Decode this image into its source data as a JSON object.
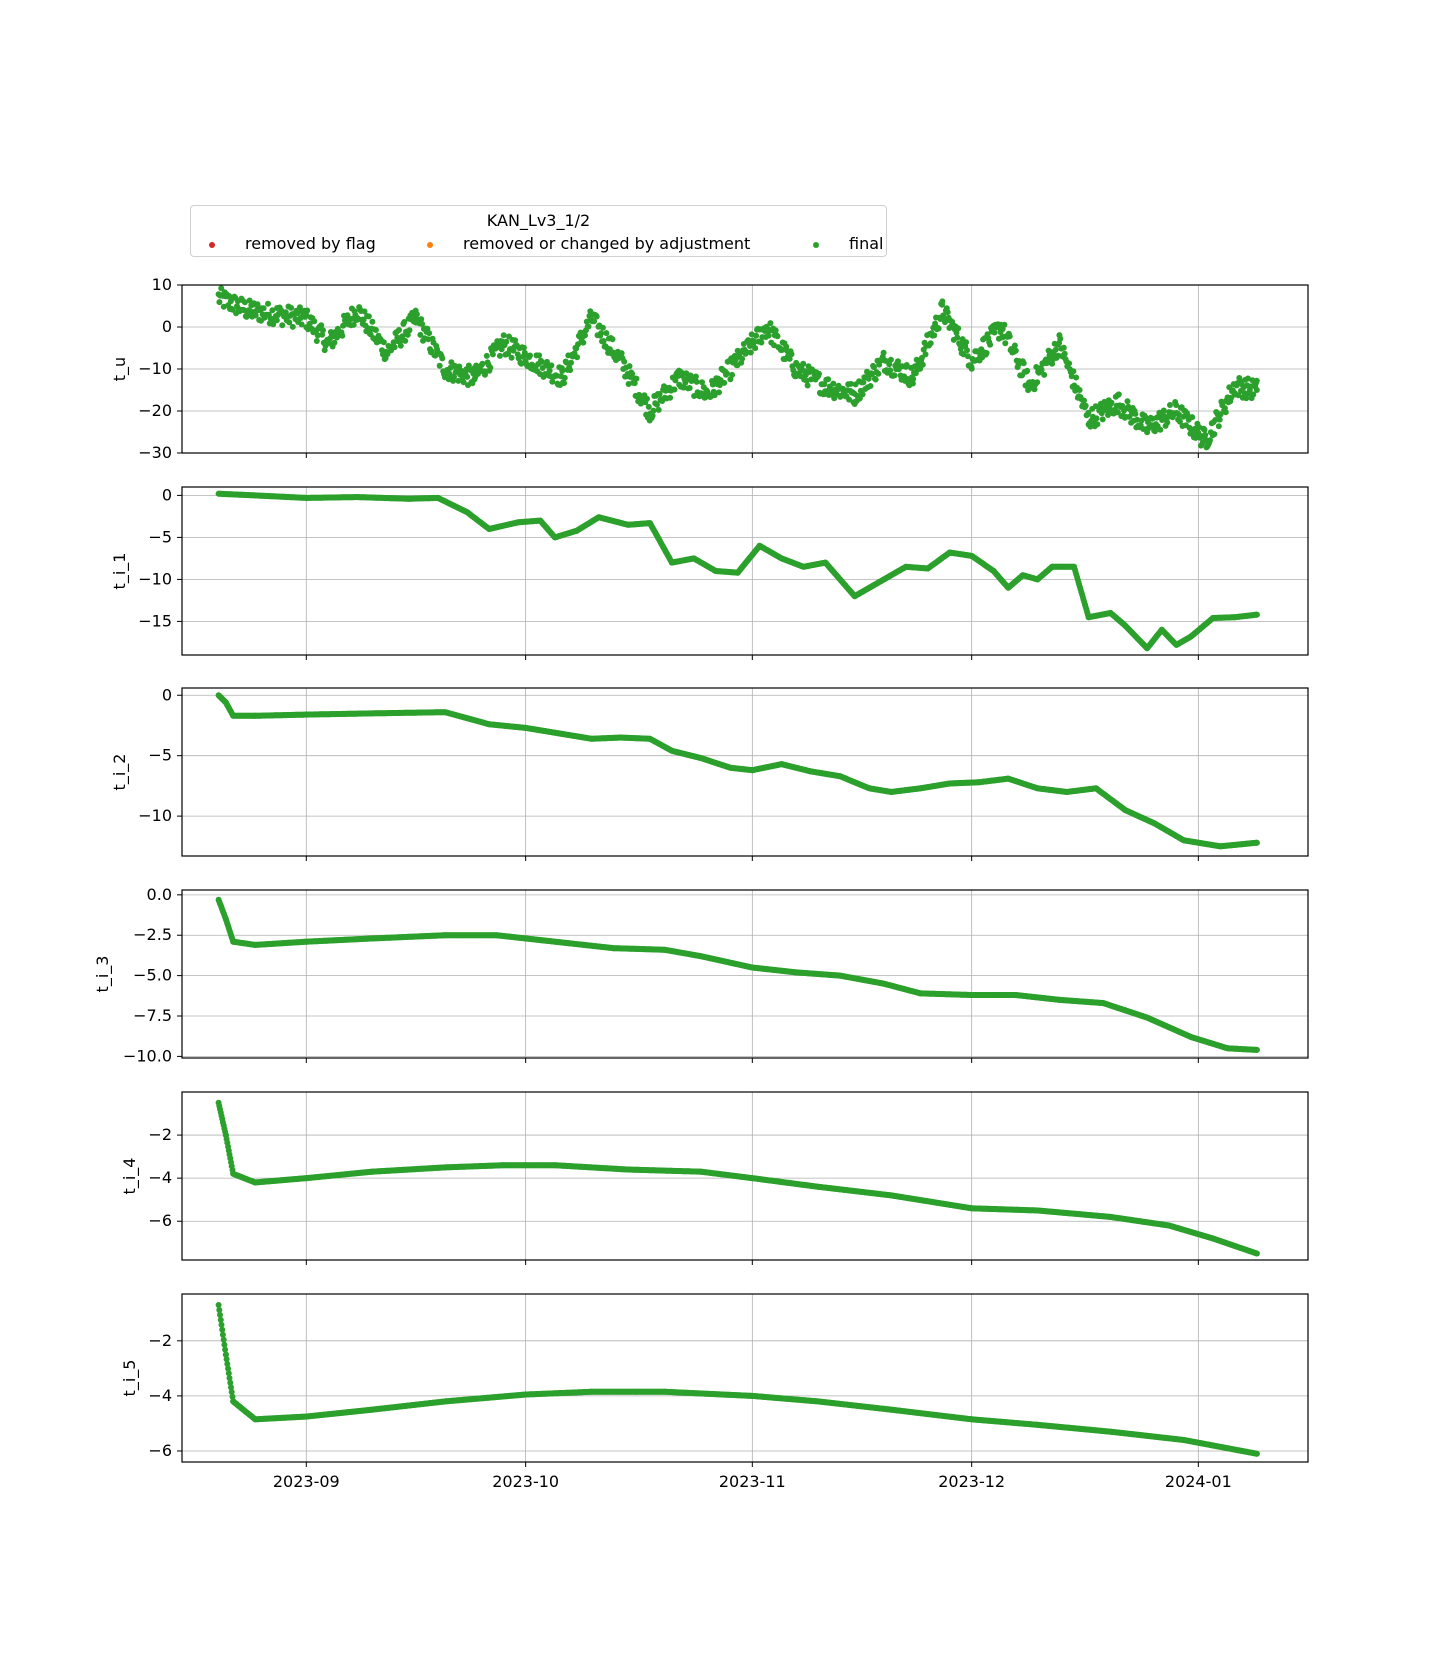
{
  "legend": {
    "title": "KAN_Lv3_1/2",
    "entries": [
      {
        "label": "removed by flag",
        "color": "#d62728"
      },
      {
        "label": "removed or changed by adjustment",
        "color": "#ff7f0e"
      },
      {
        "label": "final",
        "color": "#2ca02c"
      }
    ]
  },
  "chart_data": {
    "type": "scatter",
    "x_axis": {
      "type": "date",
      "range": [
        "2023-08-15",
        "2024-01-16"
      ],
      "ticks": [
        "2023-09-01",
        "2023-10-01",
        "2023-11-01",
        "2023-12-01",
        "2024-01-01"
      ],
      "tick_labels": [
        "2023-09",
        "2023-10",
        "2023-11",
        "2023-12",
        "2024-01"
      ]
    },
    "grid": true,
    "legend_position": "top-left, above plots",
    "series_color": "#2ca02c",
    "panels": [
      {
        "ylabel": "t_u",
        "ylim": [
          -30,
          10
        ],
        "yticks": [
          10,
          0,
          -10,
          -20,
          -30
        ],
        "ytick_labels": [
          "10",
          "0",
          "−10",
          "−20",
          "−30"
        ],
        "dates": [
          "2023-08-20",
          "2023-08-24",
          "2023-08-28",
          "2023-09-01",
          "2023-09-04",
          "2023-09-08",
          "2023-09-12",
          "2023-09-16",
          "2023-09-20",
          "2023-09-24",
          "2023-09-28",
          "2023-10-02",
          "2023-10-06",
          "2023-10-10",
          "2023-10-14",
          "2023-10-18",
          "2023-10-22",
          "2023-10-26",
          "2023-10-30",
          "2023-11-03",
          "2023-11-07",
          "2023-11-11",
          "2023-11-15",
          "2023-11-19",
          "2023-11-23",
          "2023-11-27",
          "2023-12-01",
          "2023-12-05",
          "2023-12-09",
          "2023-12-13",
          "2023-12-17",
          "2023-12-21",
          "2023-12-25",
          "2023-12-29",
          "2024-01-02",
          "2024-01-06",
          "2024-01-09"
        ],
        "values": [
          7,
          4,
          3,
          2,
          -4,
          4,
          -6,
          2,
          -10,
          -12,
          -4,
          -8,
          -12,
          2,
          -8,
          -20,
          -12,
          -16,
          -8,
          0,
          -10,
          -14,
          -16,
          -8,
          -12,
          4,
          -8,
          0,
          -14,
          -4,
          -22,
          -18,
          -24,
          -20,
          -27,
          -14,
          -15
        ]
      },
      {
        "ylabel": "t_i_1",
        "ylim": [
          -19,
          1
        ],
        "yticks": [
          0,
          -5,
          -10,
          -15
        ],
        "ytick_labels": [
          "0",
          "−5",
          "−10",
          "−15"
        ],
        "dates": [
          "2023-08-20",
          "2023-08-25",
          "2023-09-01",
          "2023-09-08",
          "2023-09-15",
          "2023-09-19",
          "2023-09-23",
          "2023-09-26",
          "2023-09-30",
          "2023-10-03",
          "2023-10-05",
          "2023-10-08",
          "2023-10-11",
          "2023-10-15",
          "2023-10-18",
          "2023-10-21",
          "2023-10-24",
          "2023-10-27",
          "2023-10-30",
          "2023-11-02",
          "2023-11-05",
          "2023-11-08",
          "2023-11-11",
          "2023-11-15",
          "2023-11-19",
          "2023-11-22",
          "2023-11-25",
          "2023-11-28",
          "2023-12-01",
          "2023-12-04",
          "2023-12-06",
          "2023-12-08",
          "2023-12-10",
          "2023-12-12",
          "2023-12-15",
          "2023-12-17",
          "2023-12-20",
          "2023-12-22",
          "2023-12-25",
          "2023-12-27",
          "2023-12-29",
          "2023-12-31",
          "2024-01-03",
          "2024-01-06",
          "2024-01-09"
        ],
        "values": [
          0.2,
          0,
          -0.3,
          -0.2,
          -0.4,
          -0.3,
          -2,
          -4,
          -3.2,
          -3,
          -5,
          -4.2,
          -2.6,
          -3.5,
          -3.3,
          -8,
          -7.5,
          -9,
          -9.2,
          -6,
          -7.5,
          -8.5,
          -8,
          -12,
          -10,
          -8.5,
          -8.7,
          -6.8,
          -7.2,
          -9,
          -11,
          -9.5,
          -10,
          -8.5,
          -8.5,
          -14.5,
          -14,
          -15.5,
          -18.2,
          -16,
          -17.8,
          -16.8,
          -14.6,
          -14.5,
          -14.2
        ]
      },
      {
        "ylabel": "t_i_2",
        "ylim": [
          -13.3,
          0.6
        ],
        "yticks": [
          0,
          -5,
          -10
        ],
        "ytick_labels": [
          "0",
          "−5",
          "−10"
        ],
        "dates": [
          "2023-08-20",
          "2023-08-21",
          "2023-08-22",
          "2023-08-25",
          "2023-09-01",
          "2023-09-10",
          "2023-09-20",
          "2023-09-26",
          "2023-10-01",
          "2023-10-06",
          "2023-10-10",
          "2023-10-14",
          "2023-10-18",
          "2023-10-21",
          "2023-10-25",
          "2023-10-29",
          "2023-11-01",
          "2023-11-05",
          "2023-11-09",
          "2023-11-13",
          "2023-11-17",
          "2023-11-20",
          "2023-11-24",
          "2023-11-28",
          "2023-12-02",
          "2023-12-06",
          "2023-12-10",
          "2023-12-14",
          "2023-12-18",
          "2023-12-22",
          "2023-12-26",
          "2023-12-30",
          "2024-01-04",
          "2024-01-09"
        ],
        "values": [
          0,
          -0.6,
          -1.7,
          -1.7,
          -1.6,
          -1.5,
          -1.4,
          -2.4,
          -2.7,
          -3.2,
          -3.6,
          -3.5,
          -3.6,
          -4.6,
          -5.2,
          -6,
          -6.2,
          -5.7,
          -6.3,
          -6.7,
          -7.7,
          -8,
          -7.7,
          -7.3,
          -7.2,
          -6.9,
          -7.7,
          -8,
          -7.7,
          -9.5,
          -10.6,
          -12,
          -12.5,
          -12.2
        ]
      },
      {
        "ylabel": "t_i_3",
        "ylim": [
          -10.1,
          0.3
        ],
        "yticks": [
          0,
          -2.5,
          -5,
          -7.5,
          -10
        ],
        "ytick_labels": [
          "0.0",
          "−2.5",
          "−5.0",
          "−7.5",
          "−10.0"
        ],
        "dates": [
          "2023-08-20",
          "2023-08-21",
          "2023-08-22",
          "2023-08-25",
          "2023-09-01",
          "2023-09-10",
          "2023-09-20",
          "2023-09-27",
          "2023-10-01",
          "2023-10-07",
          "2023-10-13",
          "2023-10-20",
          "2023-10-25",
          "2023-11-01",
          "2023-11-07",
          "2023-11-13",
          "2023-11-19",
          "2023-11-24",
          "2023-12-01",
          "2023-12-07",
          "2023-12-13",
          "2023-12-19",
          "2023-12-25",
          "2023-12-31",
          "2024-01-05",
          "2024-01-09"
        ],
        "values": [
          -0.3,
          -1.5,
          -2.9,
          -3.1,
          -2.9,
          -2.7,
          -2.5,
          -2.5,
          -2.7,
          -3,
          -3.3,
          -3.4,
          -3.8,
          -4.5,
          -4.8,
          -5,
          -5.5,
          -6.1,
          -6.2,
          -6.2,
          -6.5,
          -6.7,
          -7.6,
          -8.8,
          -9.5,
          -9.6
        ]
      },
      {
        "ylabel": "t_i_4",
        "ylim": [
          -7.8,
          0
        ],
        "yticks": [
          -2,
          -4,
          -6
        ],
        "ytick_labels": [
          "−2",
          "−4",
          "−6"
        ],
        "dates": [
          "2023-08-20",
          "2023-08-21",
          "2023-08-22",
          "2023-08-25",
          "2023-09-01",
          "2023-09-10",
          "2023-09-20",
          "2023-09-28",
          "2023-10-05",
          "2023-10-15",
          "2023-10-25",
          "2023-11-01",
          "2023-11-10",
          "2023-11-20",
          "2023-12-01",
          "2023-12-10",
          "2023-12-20",
          "2023-12-28",
          "2024-01-03",
          "2024-01-09"
        ],
        "values": [
          -0.5,
          -2,
          -3.8,
          -4.2,
          -4,
          -3.7,
          -3.5,
          -3.4,
          -3.4,
          -3.6,
          -3.7,
          -4,
          -4.4,
          -4.8,
          -5.4,
          -5.5,
          -5.8,
          -6.2,
          -6.8,
          -7.5
        ]
      },
      {
        "ylabel": "t_i_5",
        "ylim": [
          -6.4,
          -0.3
        ],
        "yticks": [
          -2,
          -4,
          -6
        ],
        "ytick_labels": [
          "−2",
          "−4",
          "−6"
        ],
        "dates": [
          "2023-08-20",
          "2023-08-21",
          "2023-08-22",
          "2023-08-25",
          "2023-09-01",
          "2023-09-10",
          "2023-09-20",
          "2023-10-01",
          "2023-10-10",
          "2023-10-20",
          "2023-11-01",
          "2023-11-10",
          "2023-11-20",
          "2023-12-01",
          "2023-12-10",
          "2023-12-20",
          "2023-12-30",
          "2024-01-09"
        ],
        "values": [
          -0.7,
          -2.5,
          -4.2,
          -4.85,
          -4.75,
          -4.5,
          -4.2,
          -3.95,
          -3.85,
          -3.85,
          -4,
          -4.2,
          -4.5,
          -4.85,
          -5.05,
          -5.3,
          -5.6,
          -6.1
        ]
      }
    ]
  }
}
